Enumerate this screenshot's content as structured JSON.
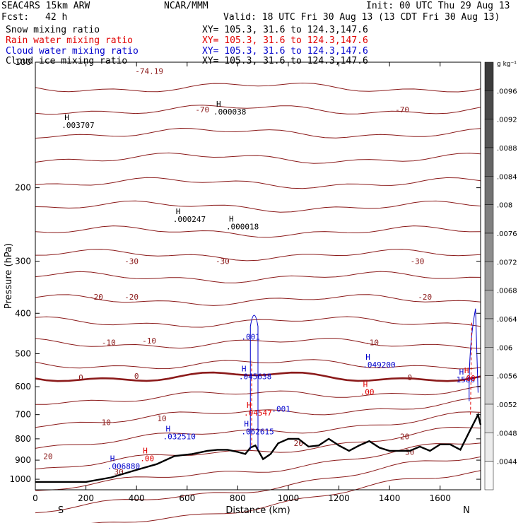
{
  "header": {
    "model": "SEAC4RS 15km ARW",
    "center": "NCAR/MMM",
    "init": "Init: 00 UTC Thu 29 Aug 13",
    "fcst_label": "Fcst:",
    "fcst_value": "42 h",
    "valid": "Valid: 18 UTC Fri 30 Aug 13 (13 CDT Fri 30 Aug 13)"
  },
  "legend": [
    {
      "label": "Snow mixing ratio",
      "xy": "XY= 105.3, 31.6 to 124.3,147.6",
      "color": "#000000"
    },
    {
      "label": "Rain water mixing ratio",
      "xy": "XY= 105.3, 31.6 to 124.3,147.6",
      "color": "#e00000"
    },
    {
      "label": "Cloud water mixing ratio",
      "xy": "XY= 105.3, 31.6 to 124.3,147.6",
      "color": "#0000cc"
    },
    {
      "label": "Cloud ice mixing ratio",
      "xy": "XY= 105.3, 31.6 to 124.3,147.6",
      "color": "#000000"
    }
  ],
  "chart_data": {
    "type": "cross-section",
    "xlabel": "Distance (km)",
    "ylabel": "Pressure (hPa)",
    "xlim": [
      0,
      1760
    ],
    "ylim": [
      1060,
      100
    ],
    "y_scale": "log",
    "x_ticks": [
      0,
      200,
      400,
      600,
      800,
      1000,
      1200,
      1400,
      1600
    ],
    "y_ticks": [
      100,
      200,
      300,
      400,
      500,
      600,
      700,
      800,
      900,
      1000
    ],
    "x_end_labels": {
      "left": "S",
      "right": "N"
    },
    "colorbar": {
      "unit": "g kg⁻¹",
      "ticks": [
        ".0096",
        ".0092",
        ".0088",
        ".0084",
        ".008",
        ".0076",
        ".0072",
        ".0068",
        ".0064",
        ".006",
        ".0056",
        ".0052",
        ".0048",
        ".0044"
      ]
    },
    "temperature_contours": {
      "color": "#8b1a1a",
      "labels": [
        {
          "text": "-74.19",
          "x": 450,
          "p": 105
        },
        {
          "text": "-70",
          "x": 660,
          "p": 130
        },
        {
          "text": "-70",
          "x": 1450,
          "p": 130
        },
        {
          "text": "-30",
          "x": 380,
          "p": 300
        },
        {
          "text": "-30",
          "x": 740,
          "p": 300
        },
        {
          "text": "-30",
          "x": 1510,
          "p": 300
        },
        {
          "text": "-20",
          "x": 240,
          "p": 365
        },
        {
          "text": "-20",
          "x": 380,
          "p": 365
        },
        {
          "text": "-20",
          "x": 1540,
          "p": 365
        },
        {
          "text": "-10",
          "x": 290,
          "p": 470
        },
        {
          "text": "-10",
          "x": 450,
          "p": 465
        },
        {
          "text": "-10",
          "x": 1330,
          "p": 470
        },
        {
          "text": "0",
          "x": 180,
          "p": 570
        },
        {
          "text": "0",
          "x": 400,
          "p": 565
        },
        {
          "text": "0",
          "x": 1480,
          "p": 570
        },
        {
          "text": "10",
          "x": 280,
          "p": 730
        },
        {
          "text": "10",
          "x": 500,
          "p": 715
        },
        {
          "text": "20",
          "x": 1460,
          "p": 790
        },
        {
          "text": "20",
          "x": 1040,
          "p": 820
        },
        {
          "text": "20",
          "x": 50,
          "p": 880
        },
        {
          "text": "30",
          "x": 1480,
          "p": 860
        },
        {
          "text": "30",
          "x": 330,
          "p": 960
        }
      ]
    },
    "terrain_pressure": [
      [
        0,
        1015
      ],
      [
        200,
        1015
      ],
      [
        300,
        990
      ],
      [
        400,
        950
      ],
      [
        480,
        920
      ],
      [
        550,
        880
      ],
      [
        620,
        870
      ],
      [
        680,
        855
      ],
      [
        720,
        850
      ],
      [
        760,
        850
      ],
      [
        800,
        860
      ],
      [
        830,
        870
      ],
      [
        850,
        840
      ],
      [
        870,
        830
      ],
      [
        900,
        895
      ],
      [
        930,
        870
      ],
      [
        960,
        820
      ],
      [
        1000,
        800
      ],
      [
        1040,
        800
      ],
      [
        1080,
        835
      ],
      [
        1120,
        830
      ],
      [
        1160,
        800
      ],
      [
        1200,
        830
      ],
      [
        1240,
        855
      ],
      [
        1280,
        830
      ],
      [
        1320,
        810
      ],
      [
        1360,
        840
      ],
      [
        1400,
        855
      ],
      [
        1440,
        855
      ],
      [
        1480,
        855
      ],
      [
        1520,
        835
      ],
      [
        1560,
        855
      ],
      [
        1600,
        825
      ],
      [
        1640,
        825
      ],
      [
        1680,
        850
      ],
      [
        1720,
        760
      ],
      [
        1750,
        700
      ],
      [
        1760,
        740
      ]
    ],
    "annotations": [
      {
        "text": "H",
        "value": ".003707",
        "x": 160,
        "p": 140,
        "color": "#000000"
      },
      {
        "text": "H",
        "value": ".000038",
        "x": 760,
        "p": 130,
        "color": "#000000"
      },
      {
        "text": "H",
        "value": ".000247",
        "x": 600,
        "p": 235,
        "color": "#000000"
      },
      {
        "text": "H",
        "value": ".000018",
        "x": 810,
        "p": 245,
        "color": "#000000"
      },
      {
        "text": "H",
        "value": ".045638",
        "x": 860,
        "p": 560,
        "color": "#0000cc"
      },
      {
        "text": "",
        "value": ".001",
        "x": 870,
        "p": 450,
        "color": "#0000cc"
      },
      {
        "text": "H",
        "value": ".049200",
        "x": 1350,
        "p": 525,
        "color": "#0000cc"
      },
      {
        "text": "H",
        "value": ".00",
        "x": 1340,
        "p": 610,
        "color": "#e00000"
      },
      {
        "text": "H",
        "value": ".04547",
        "x": 880,
        "p": 685,
        "color": "#e00000"
      },
      {
        "text": "",
        "value": ".001",
        "x": 990,
        "p": 670,
        "color": "#0000cc"
      },
      {
        "text": "H",
        "value": ".062615",
        "x": 870,
        "p": 760,
        "color": "#0000cc"
      },
      {
        "text": "H",
        "value": ".032510",
        "x": 560,
        "p": 780,
        "color": "#0000cc"
      },
      {
        "text": "H",
        "value": ".00",
        "x": 470,
        "p": 880,
        "color": "#e00000"
      },
      {
        "text": "H",
        "value": ".006880",
        "x": 340,
        "p": 920,
        "color": "#0000cc"
      },
      {
        "text": "H",
        "value": "1586",
        "x": 1720,
        "p": 570,
        "color": "#0000cc"
      },
      {
        "text": "H",
        "value": ".00",
        "x": 1740,
        "p": 565,
        "color": "#e00000"
      }
    ]
  }
}
